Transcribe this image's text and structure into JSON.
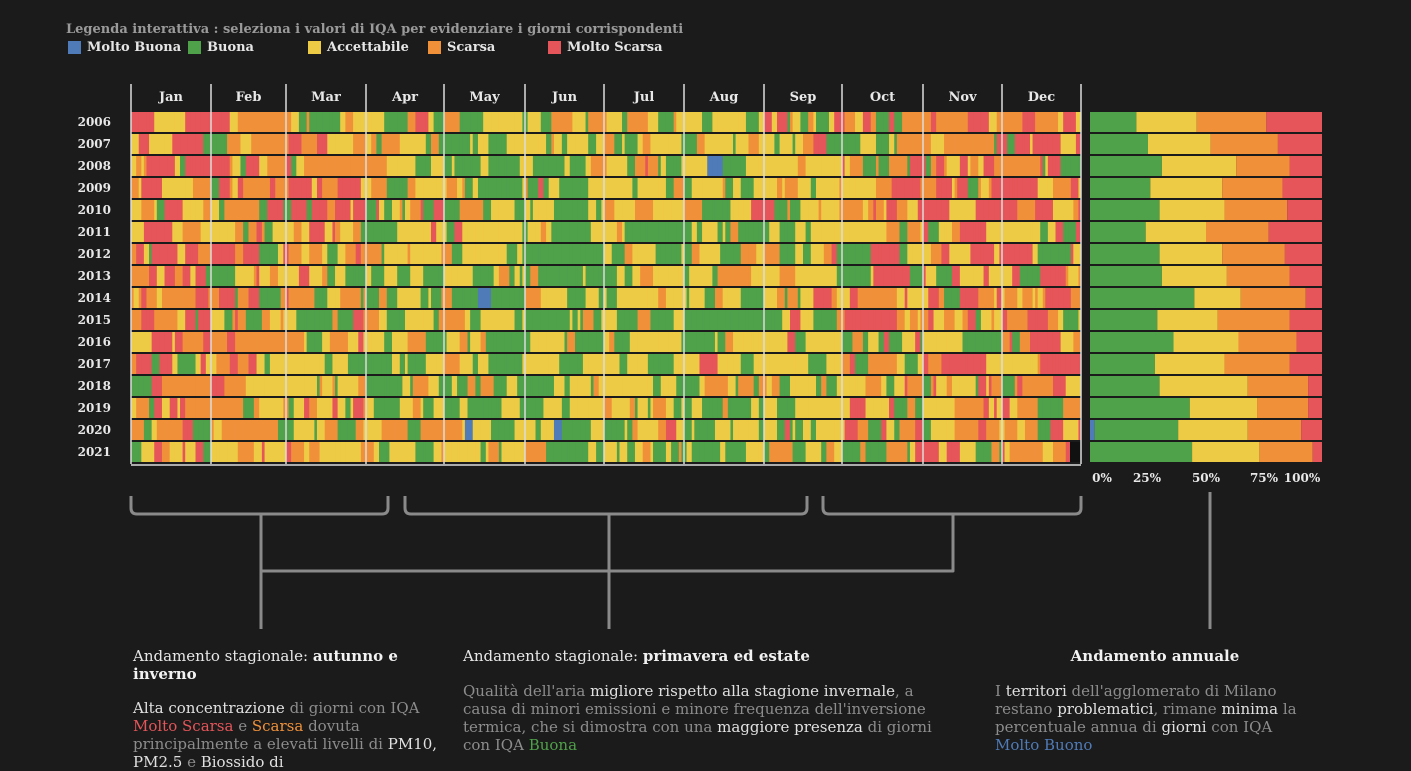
{
  "legend": {
    "title": "Legenda interattiva : seleziona i valori di IQA per evidenziare i giorni corrispondenti",
    "items": [
      {
        "label": "Molto Buona",
        "color": "#4f7bb8"
      },
      {
        "label": "Buona",
        "color": "#4fa14a"
      },
      {
        "label": "Accettabile",
        "color": "#eecb44"
      },
      {
        "label": "Scarsa",
        "color": "#f0913a"
      },
      {
        "label": "Molto Scarsa",
        "color": "#e55559"
      }
    ]
  },
  "chart_data": [
    {
      "type": "heatmap",
      "title": "",
      "x_axis": "months",
      "months": [
        "Jan",
        "Feb",
        "Mar",
        "Apr",
        "May",
        "Jun",
        "Jul",
        "Aug",
        "Sep",
        "Oct",
        "Nov",
        "Dec"
      ],
      "years": [
        "2006",
        "2007",
        "2008",
        "2009",
        "2010",
        "2011",
        "2012",
        "2013",
        "2014",
        "2015",
        "2016",
        "2017",
        "2018",
        "2019",
        "2020",
        "2021"
      ],
      "categories": [
        "Molto Buona",
        "Buona",
        "Accettabile",
        "Scarsa",
        "Molto Scarsa"
      ],
      "colors": [
        "#4f7bb8",
        "#4fa14a",
        "#eecb44",
        "#f0913a",
        "#e55559"
      ],
      "note": "daily AQI category per day of year; each row is one year",
      "monthly_mix_weights_order": [
        "Molto Buona",
        "Buona",
        "Accettabile",
        "Scarsa",
        "Molto Scarsa"
      ],
      "monthly_mix_weights": {
        "Jan": [
          0,
          8,
          20,
          27,
          45
        ],
        "Feb": [
          0,
          10,
          25,
          30,
          35
        ],
        "Mar": [
          0,
          15,
          35,
          30,
          20
        ],
        "Apr": [
          0,
          33,
          42,
          18,
          7
        ],
        "May": [
          1,
          47,
          40,
          10,
          2
        ],
        "Jun": [
          1,
          37,
          48,
          12,
          2
        ],
        "Jul": [
          0,
          30,
          52,
          15,
          3
        ],
        "Aug": [
          1,
          37,
          48,
          12,
          2
        ],
        "Sep": [
          0,
          28,
          42,
          20,
          10
        ],
        "Oct": [
          0,
          15,
          30,
          30,
          25
        ],
        "Nov": [
          0,
          10,
          22,
          28,
          40
        ],
        "Dec": [
          0,
          8,
          20,
          27,
          45
        ]
      }
    },
    {
      "type": "bar",
      "stacked": true,
      "orientation": "horizontal",
      "title": "Andamento annuale",
      "categories": [
        "2006",
        "2007",
        "2008",
        "2009",
        "2010",
        "2011",
        "2012",
        "2013",
        "2014",
        "2015",
        "2016",
        "2017",
        "2018",
        "2019",
        "2020",
        "2021"
      ],
      "x_ticks": [
        "0%",
        "25%",
        "50%",
        "75%",
        "100%"
      ],
      "xlim": [
        0,
        100
      ],
      "series": [
        {
          "name": "Molto Buona",
          "color": "#4f7bb8",
          "values": [
            0,
            0,
            0,
            0,
            0,
            0,
            0,
            0,
            0,
            0,
            0,
            0,
            0,
            0,
            2,
            0
          ]
        },
        {
          "name": "Buona",
          "color": "#4fa14a",
          "values": [
            20,
            25,
            31,
            26,
            30,
            24,
            30,
            31,
            45,
            29,
            36,
            28,
            30,
            43,
            36,
            44
          ]
        },
        {
          "name": "Accettabile",
          "color": "#eecb44",
          "values": [
            26,
            27,
            32,
            31,
            28,
            26,
            27,
            28,
            20,
            26,
            28,
            30,
            38,
            29,
            30,
            29
          ]
        },
        {
          "name": "Scarsa",
          "color": "#f0913a",
          "values": [
            30,
            29,
            23,
            26,
            27,
            27,
            27,
            27,
            28,
            31,
            25,
            28,
            26,
            22,
            23,
            23
          ]
        },
        {
          "name": "Molto Scarsa",
          "color": "#e55559",
          "values": [
            24,
            19,
            14,
            17,
            15,
            23,
            16,
            14,
            7,
            14,
            11,
            14,
            6,
            6,
            9,
            4
          ]
        }
      ]
    }
  ],
  "panels": {
    "autumn": {
      "title_pre": "Andamento stagionale: ",
      "title_bold": "autunno e inverno",
      "b1": "Alta concentrazione",
      "b2": " di giorni con IQA ",
      "b3": "Molto Scarsa",
      "b4": " e ",
      "b5": "Scarsa",
      "b6": " dovuta principalmente a elevati livelli di ",
      "b7": "PM10, PM2.5",
      "b8": " e ",
      "b9": "Biossido di"
    },
    "spring": {
      "title_pre": "Andamento stagionale: ",
      "title_bold": "primavera ed estate",
      "b1": "Qualità dell'aria ",
      "b2": "migliore rispetto alla stagione invernale",
      "b3": ", a causa di minori emissioni e minore frequenza dell'inversione termica, che si dimostra con una ",
      "b4": "maggiore presenza",
      "b5": " di giorni con IQA ",
      "b6": "Buona"
    },
    "annual": {
      "title": "Andamento annuale",
      "b1": "I ",
      "b2": "territori",
      "b3": " dell'agglomerato di Milano restano ",
      "b4": "problematici",
      "b5": ", rimane ",
      "b6": "minima",
      "b7": " la percentuale annua di ",
      "b8": "giorni",
      "b9": " con IQA ",
      "b10": "Molto Buono"
    }
  }
}
